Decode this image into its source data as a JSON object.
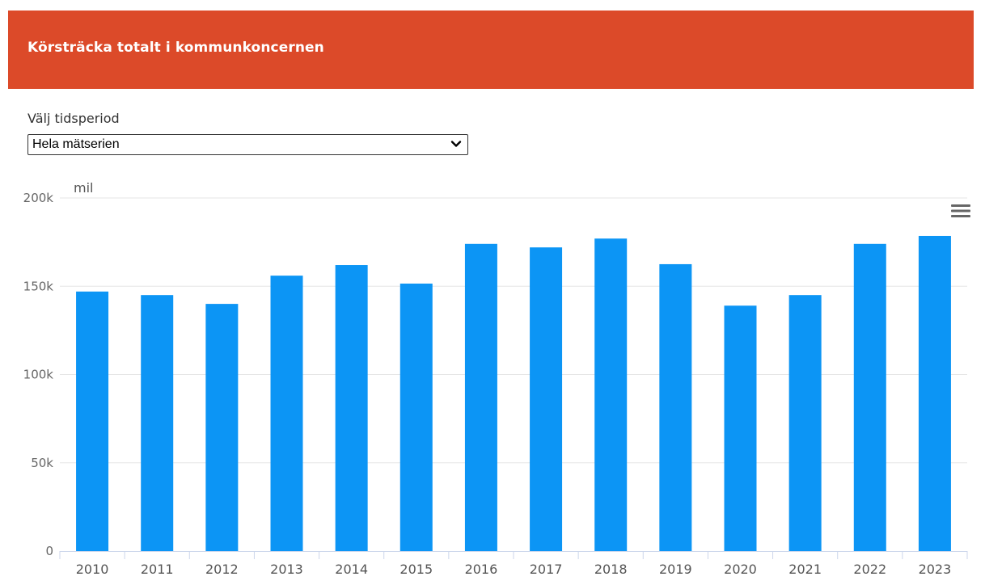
{
  "panel": {
    "title": "Körsträcka totalt i kommunkoncernen"
  },
  "period": {
    "label": "Välj tidsperiod",
    "selected": "Hela mätserien"
  },
  "menu_icon": "hamburger-menu-icon",
  "colors": {
    "header": "#dc4a29",
    "bar": "#0c95f5",
    "grid": "#e6e6e6",
    "axis_text": "#666666"
  },
  "chart_data": {
    "type": "bar",
    "ylabel": "mil",
    "ylim": [
      0,
      200000
    ],
    "yticks": [
      0,
      50000,
      100000,
      150000,
      200000
    ],
    "ytick_labels": [
      "0",
      "50k",
      "100k",
      "150k",
      "200k"
    ],
    "grid": true,
    "legend": "none",
    "categories": [
      "2010",
      "2011",
      "2012",
      "2013",
      "2014",
      "2015",
      "2016",
      "2017",
      "2018",
      "2019",
      "2020",
      "2021",
      "2022",
      "2023"
    ],
    "values": [
      147000,
      145000,
      140000,
      156000,
      162000,
      151500,
      174000,
      172000,
      177000,
      162500,
      139000,
      145000,
      174000,
      178500
    ]
  }
}
